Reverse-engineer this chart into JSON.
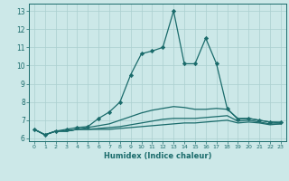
{
  "xlabel": "Humidex (Indice chaleur)",
  "background_color": "#cce8e8",
  "grid_color": "#aacfcf",
  "line_color": "#1a6b6b",
  "x_ticks": [
    0,
    1,
    2,
    3,
    4,
    5,
    6,
    7,
    8,
    9,
    10,
    11,
    12,
    13,
    14,
    15,
    16,
    17,
    18,
    19,
    20,
    21,
    22,
    23
  ],
  "y_ticks": [
    6,
    7,
    8,
    9,
    10,
    11,
    12,
    13
  ],
  "xlim": [
    -0.5,
    23.5
  ],
  "ylim": [
    5.85,
    13.4
  ],
  "series": [
    {
      "x": [
        0,
        1,
        2,
        3,
        4,
        5,
        6,
        7,
        8,
        9,
        10,
        11,
        12,
        13,
        14,
        15,
        16,
        17,
        18,
        19,
        20,
        21,
        22,
        23
      ],
      "y": [
        6.5,
        6.2,
        6.4,
        6.4,
        6.5,
        6.5,
        6.5,
        6.5,
        6.55,
        6.6,
        6.65,
        6.7,
        6.75,
        6.8,
        6.85,
        6.85,
        6.9,
        6.95,
        7.0,
        6.85,
        6.9,
        6.85,
        6.75,
        6.8
      ],
      "marker": null,
      "linewidth": 0.9
    },
    {
      "x": [
        0,
        1,
        2,
        3,
        4,
        5,
        6,
        7,
        8,
        9,
        10,
        11,
        12,
        13,
        14,
        15,
        16,
        17,
        18,
        19,
        20,
        21,
        22,
        23
      ],
      "y": [
        6.5,
        6.2,
        6.4,
        6.4,
        6.5,
        6.5,
        6.55,
        6.6,
        6.65,
        6.75,
        6.85,
        6.95,
        7.05,
        7.1,
        7.1,
        7.1,
        7.15,
        7.2,
        7.25,
        6.95,
        7.0,
        6.9,
        6.8,
        6.8
      ],
      "marker": null,
      "linewidth": 0.9
    },
    {
      "x": [
        0,
        1,
        2,
        3,
        4,
        5,
        6,
        7,
        8,
        9,
        10,
        11,
        12,
        13,
        14,
        15,
        16,
        17,
        18,
        19,
        20,
        21,
        22,
        23
      ],
      "y": [
        6.5,
        6.2,
        6.4,
        6.4,
        6.5,
        6.6,
        6.7,
        6.8,
        7.0,
        7.2,
        7.4,
        7.55,
        7.65,
        7.75,
        7.7,
        7.6,
        7.6,
        7.65,
        7.6,
        7.1,
        7.1,
        7.0,
        6.9,
        6.85
      ],
      "marker": null,
      "linewidth": 0.9
    },
    {
      "x": [
        0,
        1,
        2,
        3,
        4,
        5,
        6,
        7,
        8,
        9,
        10,
        11,
        12,
        13,
        14,
        15,
        16,
        17,
        18,
        19,
        20,
        21,
        22,
        23
      ],
      "y": [
        6.5,
        6.2,
        6.4,
        6.5,
        6.6,
        6.65,
        7.1,
        7.45,
        8.0,
        9.5,
        10.65,
        10.8,
        11.0,
        13.0,
        10.1,
        10.1,
        11.5,
        10.1,
        7.65,
        7.05,
        7.1,
        7.0,
        6.9,
        6.9
      ],
      "marker": "D",
      "markersize": 2.2,
      "linewidth": 0.9
    }
  ]
}
